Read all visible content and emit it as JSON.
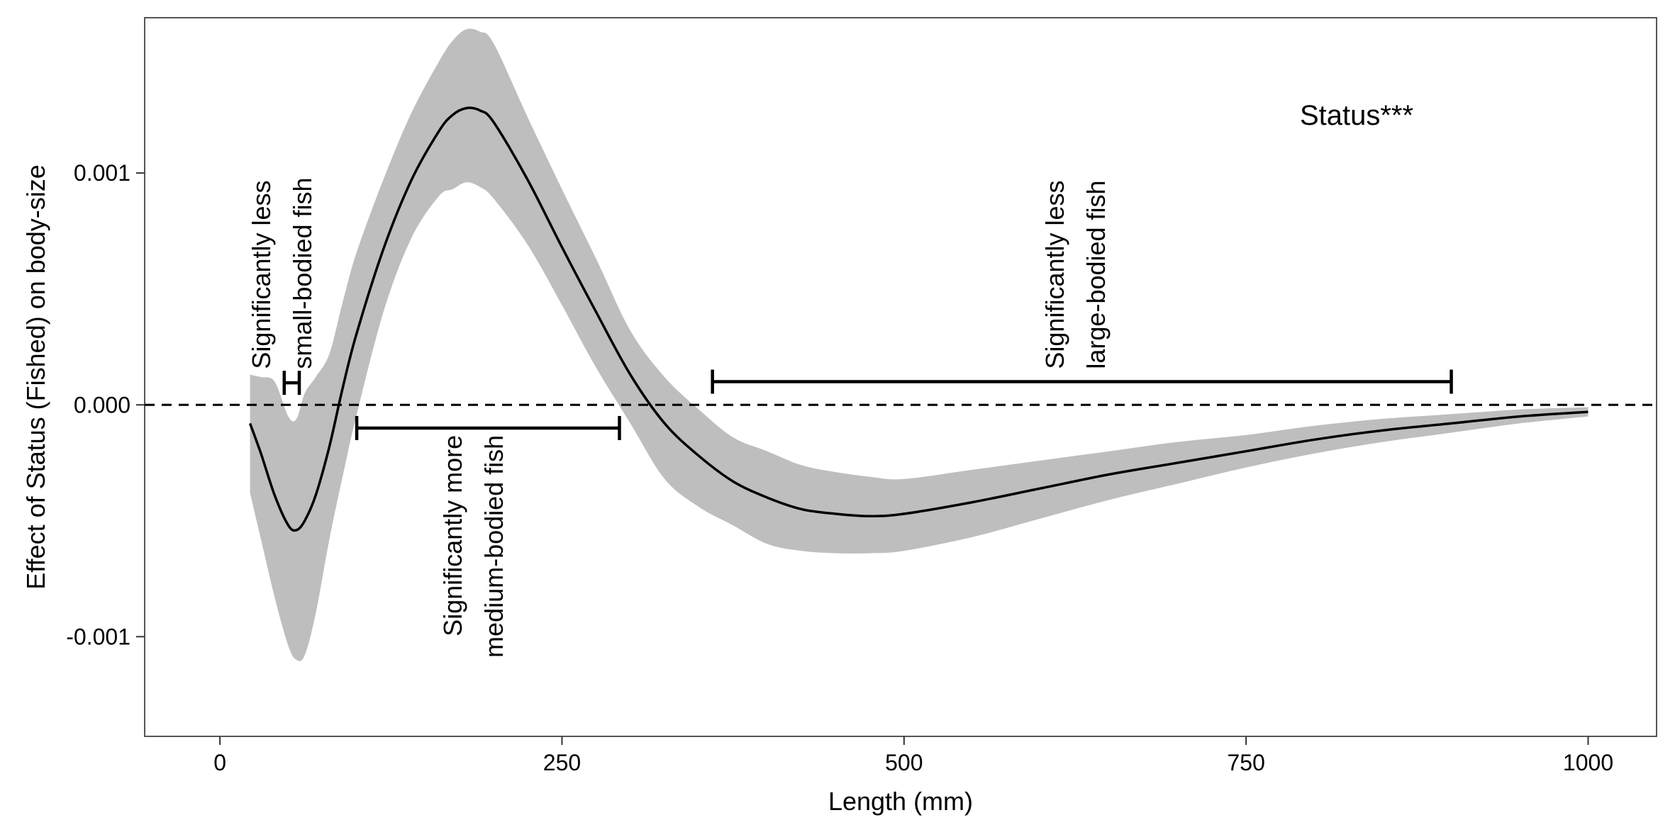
{
  "chart_data": {
    "type": "line",
    "title": "",
    "xlabel": "Length (mm)",
    "ylabel": "Effect of Status (Fished) on body-size",
    "xlim": [
      -55,
      1050
    ],
    "ylim": [
      -0.00143,
      0.00167
    ],
    "xticks": [
      0,
      250,
      500,
      750,
      1000
    ],
    "xtick_labels": [
      "0",
      "250",
      "500",
      "750",
      "1000"
    ],
    "yticks": [
      -0.001,
      0.0,
      0.001
    ],
    "ytick_labels": [
      "-0.001",
      "0.000",
      "0.001"
    ],
    "grid": false,
    "legend": "none",
    "reference_line": {
      "y": 0,
      "style": "dashed"
    },
    "series": [
      {
        "x": [
          22,
          30,
          40,
          50,
          56,
          62,
          70,
          80,
          90,
          100,
          120,
          140,
          160,
          170,
          180,
          190,
          200,
          225,
          250,
          275,
          300,
          325,
          350,
          375,
          400,
          425,
          450,
          475,
          500,
          550,
          600,
          650,
          700,
          750,
          800,
          850,
          900,
          950,
          1000
        ],
        "y": [
          -8e-05,
          -0.00021,
          -0.00039,
          -0.00052,
          -0.00054,
          -0.0005,
          -0.00039,
          -0.00018,
          8e-05,
          0.00031,
          0.00068,
          0.00097,
          0.00118,
          0.00125,
          0.00128,
          0.00127,
          0.00122,
          0.00097,
          0.00068,
          0.0004,
          0.00013,
          -8e-05,
          -0.00022,
          -0.00033,
          -0.0004,
          -0.00045,
          -0.00047,
          -0.00048,
          -0.00047,
          -0.00042,
          -0.00036,
          -0.0003,
          -0.00025,
          -0.0002,
          -0.00015,
          -0.00011,
          -8e-05,
          -5e-05,
          -3e-05
        ],
        "lower": [
          -0.00038,
          -0.00058,
          -0.00083,
          -0.00104,
          -0.0011,
          -0.00108,
          -0.0009,
          -0.00058,
          -0.0003,
          -4e-05,
          0.00041,
          0.00072,
          0.0009,
          0.00093,
          0.00096,
          0.00094,
          0.00089,
          0.00069,
          0.00043,
          0.00016,
          -8e-05,
          -0.00032,
          -0.00044,
          -0.00052,
          -0.0006,
          -0.00063,
          -0.00064,
          -0.00064,
          -0.00063,
          -0.00057,
          -0.00049,
          -0.00041,
          -0.00034,
          -0.00027,
          -0.00021,
          -0.00016,
          -0.00012,
          -8e-05,
          -5e-05
        ],
        "upper": [
          0.00013,
          0.00012,
          0.0001,
          -5e-05,
          -6e-05,
          5e-05,
          0.00012,
          0.00022,
          0.00045,
          0.00066,
          0.00098,
          0.00126,
          0.00148,
          0.00157,
          0.00162,
          0.00161,
          0.00156,
          0.00124,
          0.00093,
          0.00063,
          0.00032,
          0.00012,
          -2e-05,
          -0.00014,
          -0.0002,
          -0.00026,
          -0.00029,
          -0.00031,
          -0.00032,
          -0.00028,
          -0.00024,
          -0.0002,
          -0.00016,
          -0.00013,
          -9e-05,
          -6e-05,
          -4e-05,
          -2e-05,
          -1e-05
        ]
      }
    ],
    "status_label": "Status***",
    "annotations": [
      {
        "lines": [
          "Significantly less",
          "small-bodied fish"
        ],
        "x_center": 45,
        "text_bottom_y": 0.000155,
        "bracket": {
          "x1": 47,
          "x2": 58,
          "y": 9.5e-05
        }
      },
      {
        "lines": [
          "Significantly more",
          "medium-bodied fish"
        ],
        "x_center": 185,
        "text_top_y": -0.00013,
        "bracket": {
          "x1": 100,
          "x2": 292,
          "y": -0.0001
        }
      },
      {
        "lines": [
          "Significantly less",
          "large-bodied fish"
        ],
        "x_center": 625,
        "text_bottom_y": 0.000155,
        "bracket": {
          "x1": 360,
          "x2": 900,
          "y": 0.0001
        }
      }
    ]
  }
}
